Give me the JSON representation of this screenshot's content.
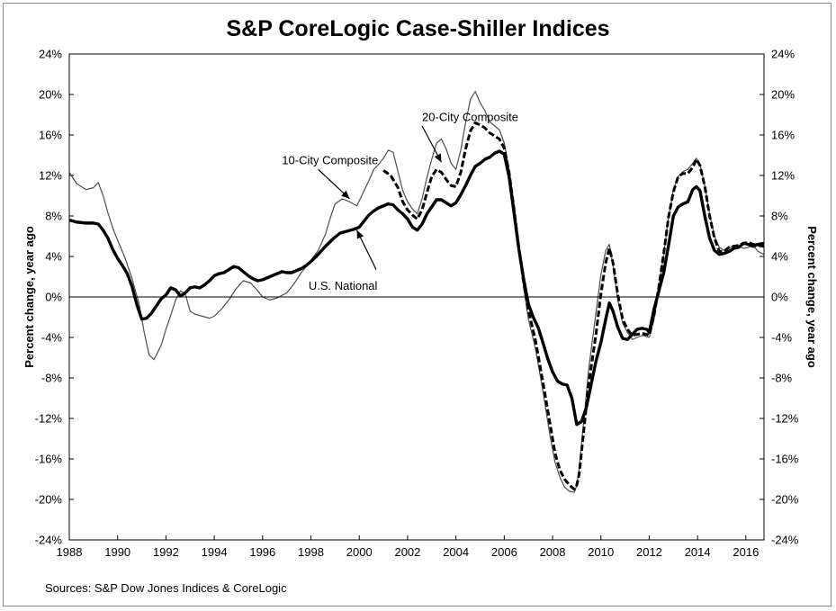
{
  "chart_data": {
    "type": "line",
    "title": "S&P CoreLogic Case-Shiller Indices",
    "source": "Sources:  S&P Dow Jones Indices & CoreLogic",
    "ylabel_left": "Percent change, year ago",
    "ylabel_right": "Percent change, year ago",
    "xlim": [
      1988,
      2016.75
    ],
    "ylim": [
      -24,
      24
    ],
    "x_ticks": [
      1988,
      1990,
      1992,
      1994,
      1996,
      1998,
      2000,
      2002,
      2004,
      2006,
      2008,
      2010,
      2012,
      2014,
      2016
    ],
    "x_tick_labels": [
      "1988",
      "1990",
      "1992",
      "1994",
      "1996",
      "1998",
      "2000",
      "2002",
      "2004",
      "2006",
      "2008",
      "2010",
      "2012",
      "2014",
      "2016"
    ],
    "y_ticks": [
      -24,
      -20,
      -16,
      -12,
      -8,
      -4,
      0,
      4,
      8,
      12,
      16,
      20,
      24
    ],
    "y_tick_labels": [
      "-24%",
      "-20%",
      "-16%",
      "-12%",
      "-8%",
      "-4%",
      "0%",
      "4%",
      "8%",
      "12%",
      "16%",
      "20%",
      "24%"
    ],
    "grid": false,
    "zero_line": true,
    "annotations": [
      {
        "text": "10-City Composite",
        "series": "10-City Composite",
        "label_at": [
          1996.8,
          13.1
        ],
        "arrow_from": [
          1998.3,
          12.6
        ],
        "arrow_to": [
          1999.6,
          9.7
        ]
      },
      {
        "text": "20-City Composite",
        "series": "20-City Composite",
        "label_at": [
          2002.6,
          17.4
        ],
        "arrow_from": [
          2002.6,
          16.9
        ],
        "arrow_to": [
          2003.4,
          13.3
        ]
      },
      {
        "text": "U.S. National",
        "series": "U.S. National",
        "label_at": [
          1997.9,
          0.7
        ],
        "arrow_from": [
          2000.7,
          2.7
        ],
        "arrow_to": [
          1999.9,
          6.6
        ]
      }
    ],
    "series": [
      {
        "name": "10-City Composite",
        "color": "#4d4d4d",
        "style": "thin",
        "x": [
          1988,
          1988.3,
          1988.7,
          1989,
          1989.2,
          1989.4,
          1989.6,
          1989.8,
          1990,
          1990.3,
          1990.6,
          1990.9,
          1991.1,
          1991.3,
          1991.5,
          1991.8,
          1992,
          1992.2,
          1992.4,
          1992.6,
          1992.8,
          1993,
          1993.2,
          1993.5,
          1993.8,
          1994,
          1994.3,
          1994.6,
          1994.9,
          1995.2,
          1995.5,
          1995.8,
          1996,
          1996.3,
          1996.6,
          1997,
          1997.3,
          1997.6,
          1998,
          1998.3,
          1998.6,
          1998.8,
          1999,
          1999.3,
          1999.6,
          1999.9,
          2000.1,
          2000.4,
          2000.6,
          2000.8,
          2001,
          2001.2,
          2001.4,
          2001.6,
          2001.8,
          2002,
          2002.2,
          2002.4,
          2002.6,
          2002.8,
          2003,
          2003.2,
          2003.4,
          2003.6,
          2003.8,
          2004,
          2004.2,
          2004.4,
          2004.6,
          2004.8,
          2005,
          2005.2,
          2005.4,
          2005.6,
          2005.8,
          2006,
          2006.2,
          2006.4,
          2006.6,
          2006.8,
          2007,
          2007.3,
          2007.6,
          2007.9,
          2008.1,
          2008.3,
          2008.5,
          2008.7,
          2008.9,
          2009,
          2009.1,
          2009.3,
          2009.5,
          2009.8,
          2010,
          2010.2,
          2010.35,
          2010.5,
          2010.7,
          2010.9,
          2011.1,
          2011.3,
          2011.5,
          2011.7,
          2011.9,
          2012,
          2012.2,
          2012.4,
          2012.6,
          2012.8,
          2013,
          2013.2,
          2013.4,
          2013.6,
          2013.8,
          2013.95,
          2014.1,
          2014.3,
          2014.5,
          2014.7,
          2014.9,
          2015.1,
          2015.3,
          2015.5,
          2015.7,
          2015.9,
          2016.1,
          2016.3,
          2016.5,
          2016.75
        ],
        "y": [
          12.3,
          11.2,
          10.6,
          10.8,
          11.3,
          10.0,
          8.3,
          6.8,
          5.6,
          3.9,
          1.8,
          -0.8,
          -3.5,
          -5.7,
          -6.2,
          -4.8,
          -3.2,
          -1.8,
          -0.3,
          0.6,
          0.3,
          -1.4,
          -1.7,
          -1.9,
          -2.1,
          -1.9,
          -1.2,
          -0.3,
          0.8,
          1.6,
          1.4,
          0.6,
          0.0,
          -0.3,
          -0.1,
          0.4,
          1.3,
          2.4,
          3.6,
          4.6,
          6.2,
          7.8,
          9.2,
          9.7,
          9.4,
          9.0,
          10.0,
          11.5,
          12.6,
          13.1,
          13.7,
          14.5,
          14.3,
          12.4,
          10.5,
          9.4,
          8.7,
          8.2,
          9.7,
          11.8,
          13.6,
          15.2,
          15.6,
          14.6,
          13.2,
          12.6,
          14.5,
          17.2,
          19.5,
          20.3,
          19.2,
          18.4,
          17.3,
          16.9,
          16.5,
          15.2,
          12.6,
          9.0,
          4.8,
          1.0,
          -2.2,
          -5.2,
          -9.3,
          -13.8,
          -16.3,
          -17.8,
          -18.8,
          -19.2,
          -19.3,
          -18.6,
          -17.0,
          -12.0,
          -7.0,
          -1.5,
          2.2,
          4.6,
          5.2,
          3.2,
          -0.3,
          -2.6,
          -3.5,
          -4.2,
          -4.0,
          -3.8,
          -3.9,
          -4.0,
          -2.2,
          1.0,
          4.2,
          7.8,
          10.6,
          11.9,
          12.4,
          12.6,
          13.2,
          13.7,
          13.1,
          11.0,
          8.2,
          6.0,
          4.9,
          4.6,
          4.8,
          5.1,
          5.0,
          4.8,
          4.9,
          5.1,
          4.5,
          4.2
        ]
      },
      {
        "name": "20-City Composite",
        "color": "#000000",
        "style": "dashed",
        "x": [
          2001,
          2001.3,
          2001.6,
          2001.8,
          2002,
          2002.2,
          2002.4,
          2002.6,
          2002.8,
          2003,
          2003.2,
          2003.4,
          2003.6,
          2003.8,
          2004,
          2004.2,
          2004.4,
          2004.6,
          2004.8,
          2005,
          2005.2,
          2005.4,
          2005.6,
          2005.8,
          2006,
          2006.2,
          2006.4,
          2006.6,
          2006.8,
          2007,
          2007.3,
          2007.6,
          2007.9,
          2008.1,
          2008.3,
          2008.5,
          2008.7,
          2008.9,
          2009,
          2009.1,
          2009.3,
          2009.5,
          2009.8,
          2010,
          2010.2,
          2010.35,
          2010.5,
          2010.7,
          2010.9,
          2011.1,
          2011.3,
          2011.5,
          2011.7,
          2011.9,
          2012,
          2012.2,
          2012.4,
          2012.6,
          2012.8,
          2013,
          2013.2,
          2013.4,
          2013.6,
          2013.8,
          2013.95,
          2014.1,
          2014.3,
          2014.5,
          2014.7,
          2014.9,
          2015.1,
          2015.3,
          2015.5,
          2015.7,
          2015.9,
          2016.1,
          2016.3,
          2016.5,
          2016.75
        ],
        "y": [
          12.5,
          12.0,
          10.8,
          9.4,
          8.6,
          8.1,
          7.7,
          8.6,
          10.3,
          11.9,
          12.6,
          12.3,
          11.6,
          11.0,
          10.9,
          12.3,
          14.6,
          16.4,
          17.2,
          17.0,
          16.7,
          16.2,
          15.9,
          15.6,
          14.7,
          12.3,
          8.8,
          4.9,
          1.5,
          -1.3,
          -4.4,
          -8.4,
          -12.6,
          -15.4,
          -17.1,
          -18.0,
          -18.6,
          -19.0,
          -18.6,
          -17.5,
          -13.0,
          -8.5,
          -3.6,
          0.3,
          3.4,
          4.8,
          3.4,
          0.2,
          -2.2,
          -3.2,
          -3.8,
          -3.7,
          -3.6,
          -3.7,
          -3.8,
          -1.8,
          1.0,
          4.3,
          7.9,
          10.4,
          11.9,
          12.2,
          12.2,
          12.8,
          13.6,
          13.0,
          10.9,
          8.0,
          5.8,
          4.5,
          4.5,
          4.9,
          5.0,
          5.1,
          5.3,
          5.4,
          5.2,
          5.1,
          5.0
        ]
      },
      {
        "name": "U.S. National",
        "color": "#000000",
        "style": "thick",
        "x": [
          1988,
          1988.3,
          1988.7,
          1989,
          1989.2,
          1989.4,
          1989.6,
          1989.8,
          1990,
          1990.2,
          1990.4,
          1990.6,
          1990.8,
          1991,
          1991.2,
          1991.4,
          1991.6,
          1991.8,
          1992,
          1992.2,
          1992.4,
          1992.6,
          1992.8,
          1993,
          1993.2,
          1993.4,
          1993.6,
          1993.8,
          1994,
          1994.2,
          1994.4,
          1994.6,
          1994.8,
          1995,
          1995.2,
          1995.4,
          1995.6,
          1995.8,
          1996,
          1996.2,
          1996.4,
          1996.6,
          1996.8,
          1997,
          1997.2,
          1997.4,
          1997.6,
          1997.8,
          1998,
          1998.3,
          1998.6,
          1998.9,
          1999.2,
          1999.5,
          1999.8,
          2000,
          2000.2,
          2000.4,
          2000.6,
          2000.8,
          2001,
          2001.2,
          2001.4,
          2001.6,
          2001.8,
          2002,
          2002.2,
          2002.4,
          2002.6,
          2002.8,
          2003,
          2003.2,
          2003.4,
          2003.6,
          2003.8,
          2004,
          2004.2,
          2004.4,
          2004.6,
          2004.8,
          2005,
          2005.2,
          2005.4,
          2005.6,
          2005.8,
          2006,
          2006.2,
          2006.4,
          2006.6,
          2006.8,
          2007,
          2007.2,
          2007.4,
          2007.6,
          2007.8,
          2008,
          2008.2,
          2008.4,
          2008.6,
          2008.8,
          2009,
          2009.2,
          2009.4,
          2009.6,
          2009.8,
          2010,
          2010.2,
          2010.35,
          2010.5,
          2010.7,
          2010.9,
          2011.1,
          2011.3,
          2011.5,
          2011.7,
          2011.9,
          2012,
          2012.2,
          2012.4,
          2012.6,
          2012.8,
          2013,
          2013.2,
          2013.4,
          2013.6,
          2013.8,
          2013.95,
          2014.1,
          2014.3,
          2014.5,
          2014.7,
          2014.9,
          2015.1,
          2015.3,
          2015.5,
          2015.7,
          2015.9,
          2016.1,
          2016.3,
          2016.5,
          2016.75
        ],
        "y": [
          7.6,
          7.4,
          7.3,
          7.3,
          7.2,
          6.6,
          5.8,
          4.7,
          3.8,
          3.1,
          2.3,
          1.0,
          -0.8,
          -2.2,
          -2.1,
          -1.6,
          -0.9,
          -0.2,
          0.2,
          0.9,
          0.7,
          0.1,
          0.4,
          0.9,
          1.0,
          0.9,
          1.2,
          1.6,
          2.1,
          2.3,
          2.4,
          2.7,
          3.0,
          2.9,
          2.5,
          2.1,
          1.8,
          1.6,
          1.7,
          1.9,
          2.1,
          2.3,
          2.5,
          2.4,
          2.4,
          2.6,
          2.8,
          3.1,
          3.5,
          4.2,
          5.0,
          5.7,
          6.3,
          6.5,
          6.7,
          6.9,
          7.5,
          8.1,
          8.5,
          8.8,
          9.0,
          9.2,
          9.1,
          8.6,
          8.2,
          7.7,
          6.9,
          6.6,
          7.2,
          8.2,
          8.9,
          9.6,
          9.6,
          9.3,
          9.0,
          9.3,
          10.1,
          11.0,
          12.0,
          12.9,
          13.2,
          13.6,
          13.8,
          14.2,
          14.4,
          14.1,
          11.9,
          8.4,
          4.8,
          1.8,
          -0.7,
          -2.0,
          -3.0,
          -4.5,
          -6.1,
          -7.4,
          -8.3,
          -8.6,
          -8.7,
          -10.0,
          -12.6,
          -12.3,
          -10.9,
          -8.6,
          -6.3,
          -4.5,
          -2.2,
          -0.6,
          -1.4,
          -3.0,
          -4.1,
          -4.2,
          -3.7,
          -3.2,
          -3.1,
          -3.2,
          -3.5,
          -1.2,
          0.6,
          2.4,
          5.1,
          8.0,
          8.9,
          9.2,
          9.4,
          10.6,
          10.9,
          10.5,
          8.0,
          5.8,
          4.6,
          4.2,
          4.3,
          4.5,
          4.8,
          4.9,
          5.3,
          5.2,
          5.0,
          5.2,
          5.3
        ]
      }
    ]
  }
}
